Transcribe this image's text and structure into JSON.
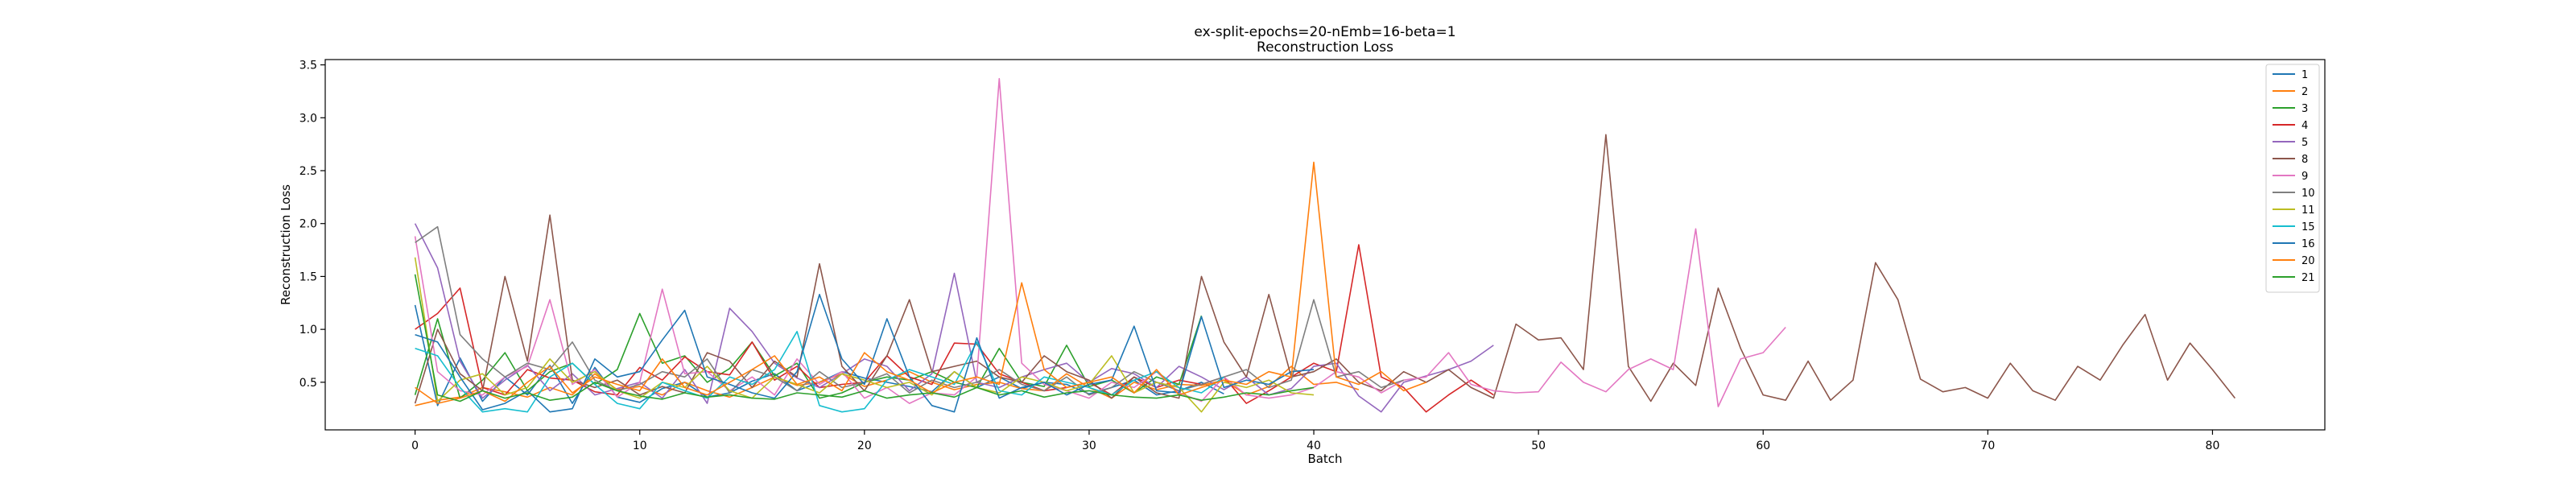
{
  "title": "ex-split-epochs=20-nEmb=16-beta=1",
  "subtitle": "Reconstruction Loss",
  "chart_data": {
    "type": "line",
    "title": "ex-split-epochs=20-nEmb=16-beta=1",
    "subtitle": "Reconstruction Loss",
    "xlabel": "Batch",
    "ylabel": "Reconstruction Loss",
    "xlim": [
      -4,
      85
    ],
    "ylim": [
      0.05,
      3.55
    ],
    "x_ticks": [
      0,
      10,
      20,
      30,
      40,
      50,
      60,
      70,
      80
    ],
    "y_ticks": [
      0.5,
      1.0,
      1.5,
      2.0,
      2.5,
      3.0,
      3.5
    ],
    "x_tick_labels": [
      "0",
      "10",
      "20",
      "30",
      "40",
      "50",
      "60",
      "70",
      "80"
    ],
    "y_tick_labels": [
      "0.5",
      "1.0",
      "1.5",
      "2.0",
      "2.5",
      "3.0",
      "3.5"
    ],
    "grid": false,
    "legend_position": "top-right",
    "series": [
      {
        "name": "1",
        "color": "#1f77b4",
        "values": [
          1.23,
          0.28,
          0.73,
          0.32,
          0.55,
          0.38,
          0.66,
          0.3,
          0.64,
          0.36,
          0.31,
          0.44,
          0.5,
          0.36,
          0.4,
          0.51,
          0.58,
          0.42,
          0.5,
          0.6,
          0.54,
          0.5,
          0.46,
          0.41,
          0.6,
          0.45,
          0.55,
          0.44,
          0.5,
          0.48,
          0.39,
          0.45,
          0.52,
          0.38,
          0.42,
          0.5,
          0.39
        ]
      },
      {
        "name": "2",
        "color": "#ff7f0e",
        "values": [
          0.28,
          0.33,
          0.36,
          0.45,
          0.41,
          0.36,
          0.45,
          0.38,
          0.58,
          0.43,
          0.46,
          0.38,
          0.5,
          0.42,
          0.36,
          0.45,
          0.55,
          0.47,
          0.5,
          0.58,
          0.46,
          0.52,
          0.6,
          0.5,
          0.43,
          0.48,
          0.5,
          0.44,
          0.42,
          0.58,
          0.45,
          0.35,
          0.5,
          0.43,
          0.48,
          0.47,
          0.52,
          0.38,
          0.46,
          0.65,
          0.48,
          0.5,
          0.43
        ]
      },
      {
        "name": "3",
        "color": "#2ca02c",
        "values": [
          0.38,
          1.1,
          0.35,
          0.52,
          0.78,
          0.42,
          0.6,
          0.68,
          0.48,
          0.62,
          1.15,
          0.68,
          0.75,
          0.5,
          0.63,
          0.88,
          0.56,
          0.68,
          0.35,
          0.4,
          0.5,
          0.55,
          0.52,
          0.6,
          0.5,
          0.45,
          0.82,
          0.5,
          0.46,
          0.85,
          0.46,
          0.52,
          0.4,
          0.55,
          0.48,
          1.13
        ]
      },
      {
        "name": "4",
        "color": "#d62728",
        "values": [
          1.0,
          1.15,
          1.39,
          0.45,
          0.38,
          0.62,
          0.54,
          0.52,
          0.41,
          0.38,
          0.64,
          0.52,
          0.74,
          0.6,
          0.57,
          0.88,
          0.52,
          0.65,
          0.45,
          0.48,
          0.5,
          0.75,
          0.55,
          0.48,
          0.87,
          0.86,
          0.58,
          0.5,
          0.42,
          0.45,
          0.5,
          0.38,
          0.55,
          0.45,
          0.52,
          0.48,
          0.55,
          0.3,
          0.42,
          0.55,
          0.68,
          0.6,
          1.8,
          0.55,
          0.45,
          0.22,
          0.38,
          0.52,
          0.38
        ]
      },
      {
        "name": "5",
        "color": "#9467bd",
        "values": [
          2.0,
          1.58,
          0.7,
          0.35,
          0.52,
          0.66,
          0.42,
          0.58,
          0.38,
          0.44,
          0.5,
          0.35,
          0.62,
          0.3,
          1.2,
          0.98,
          0.68,
          0.54,
          0.45,
          0.58,
          0.72,
          0.65,
          0.42,
          0.58,
          1.53,
          0.5,
          0.45,
          0.55,
          0.62,
          0.68,
          0.5,
          0.63,
          0.58,
          0.45,
          0.65,
          0.55,
          0.43,
          0.55,
          0.38,
          0.44,
          0.65,
          0.68,
          0.37,
          0.22,
          0.5,
          0.56,
          0.62,
          0.7,
          0.85
        ]
      },
      {
        "name": "8",
        "color": "#8c564b",
        "values": [
          0.3,
          1.0,
          0.58,
          0.42,
          1.5,
          0.7,
          2.08,
          0.52,
          0.45,
          0.52,
          0.38,
          0.46,
          0.4,
          0.78,
          0.7,
          0.45,
          0.7,
          0.55,
          1.62,
          0.65,
          0.42,
          0.75,
          1.28,
          0.6,
          0.65,
          0.7,
          0.55,
          0.5,
          0.75,
          0.6,
          0.52,
          0.35,
          0.55,
          0.4,
          0.35,
          1.5,
          0.88,
          0.55,
          1.33,
          0.55,
          0.6,
          0.72,
          0.5,
          0.42,
          0.6,
          0.5,
          0.62,
          0.45,
          0.35,
          1.05,
          0.9,
          0.92,
          0.62,
          2.84,
          0.65,
          0.32,
          0.68,
          0.47,
          1.39,
          0.82,
          0.38,
          0.33,
          0.7,
          0.33,
          0.52,
          1.63,
          1.28,
          0.53,
          0.41,
          0.45,
          0.35,
          0.68,
          0.42,
          0.33,
          0.65,
          0.52,
          0.85,
          1.14,
          0.52,
          0.87,
          0.62,
          0.35
        ]
      },
      {
        "name": "9",
        "color": "#e377c2",
        "values": [
          1.88,
          0.6,
          0.42,
          0.38,
          0.55,
          0.65,
          1.28,
          0.48,
          0.62,
          0.36,
          0.5,
          1.38,
          0.58,
          0.6,
          0.42,
          0.55,
          0.38,
          0.72,
          0.48,
          0.6,
          0.35,
          0.45,
          0.3,
          0.4,
          0.38,
          0.55,
          3.37,
          0.68,
          0.48,
          0.42,
          0.35,
          0.5,
          0.45,
          0.6,
          0.4,
          0.32,
          0.55,
          0.38,
          0.35,
          0.38,
          0.45,
          0.6,
          0.55,
          0.4,
          0.52,
          0.55,
          0.78,
          0.48,
          0.42,
          0.4,
          0.41,
          0.69,
          0.5,
          0.41,
          0.62,
          0.72,
          0.62,
          1.95,
          0.27,
          0.72,
          0.78,
          1.02
        ]
      },
      {
        "name": "10",
        "color": "#7f7f7f",
        "values": [
          1.82,
          1.97,
          0.95,
          0.72,
          0.55,
          0.68,
          0.62,
          0.88,
          0.52,
          0.42,
          0.48,
          0.6,
          0.55,
          0.72,
          0.4,
          0.62,
          0.55,
          0.42,
          0.6,
          0.45,
          0.5,
          0.58,
          0.4,
          0.52,
          0.45,
          0.5,
          0.62,
          0.48,
          0.42,
          0.55,
          0.38,
          0.45,
          0.6,
          0.5,
          0.42,
          0.48,
          0.55,
          0.62,
          0.45,
          0.52,
          1.28,
          0.55,
          0.6,
          0.45,
          0.52
        ]
      },
      {
        "name": "11",
        "color": "#bcbd22",
        "values": [
          1.68,
          0.32,
          0.52,
          0.58,
          0.38,
          0.45,
          0.72,
          0.5,
          0.6,
          0.42,
          0.35,
          0.5,
          0.45,
          0.65,
          0.42,
          0.35,
          0.55,
          0.48,
          0.4,
          0.58,
          0.52,
          0.45,
          0.5,
          0.38,
          0.6,
          0.45,
          0.4,
          0.55,
          0.5,
          0.42,
          0.48,
          0.75,
          0.4,
          0.5,
          0.45,
          0.22,
          0.5,
          0.45,
          0.52,
          0.4,
          0.38
        ]
      },
      {
        "name": "15",
        "color": "#17becf",
        "values": [
          0.82,
          0.75,
          0.45,
          0.22,
          0.25,
          0.22,
          0.55,
          0.68,
          0.48,
          0.3,
          0.25,
          0.5,
          0.42,
          0.35,
          0.55,
          0.48,
          0.62,
          0.98,
          0.28,
          0.22,
          0.25,
          0.52,
          0.62,
          0.55,
          0.48,
          0.88,
          0.42,
          0.38,
          0.55,
          0.5,
          0.45,
          0.38,
          0.52,
          0.6,
          0.45,
          0.4,
          0.55
        ]
      },
      {
        "name": "16",
        "color": "#1f77b4",
        "values": [
          0.95,
          0.88,
          0.55,
          0.24,
          0.3,
          0.42,
          0.22,
          0.25,
          0.72,
          0.55,
          0.6,
          0.9,
          1.18,
          0.55,
          0.48,
          0.4,
          0.35,
          0.6,
          1.33,
          0.72,
          0.48,
          1.1,
          0.55,
          0.28,
          0.22,
          0.92,
          0.35,
          0.45,
          0.5,
          0.38,
          0.48,
          0.52,
          1.03,
          0.42,
          0.4,
          1.12,
          0.45,
          0.52,
          0.48,
          0.6,
          0.62
        ]
      },
      {
        "name": "20",
        "color": "#ff7f0e",
        "values": [
          0.45,
          0.3,
          0.35,
          0.42,
          0.32,
          0.5,
          0.65,
          0.4,
          0.55,
          0.48,
          0.42,
          0.72,
          0.45,
          0.38,
          0.5,
          0.62,
          0.75,
          0.48,
          0.55,
          0.42,
          0.78,
          0.6,
          0.52,
          0.4,
          0.5,
          0.55,
          0.48,
          1.44,
          0.62,
          0.45,
          0.5,
          0.55,
          0.4,
          0.62,
          0.38,
          0.45,
          0.52,
          0.48,
          0.6,
          0.55,
          2.58,
          0.55,
          0.48,
          0.6,
          0.42,
          0.5
        ]
      },
      {
        "name": "21",
        "color": "#2ca02c",
        "values": [
          1.52,
          0.38,
          0.32,
          0.42,
          0.35,
          0.4,
          0.33,
          0.36,
          0.5,
          0.42,
          0.37,
          0.34,
          0.4,
          0.36,
          0.38,
          0.35,
          0.34,
          0.4,
          0.38,
          0.36,
          0.42,
          0.35,
          0.38,
          0.4,
          0.36,
          0.45,
          0.38,
          0.42,
          0.36,
          0.4,
          0.42,
          0.38,
          0.36,
          0.35,
          0.38,
          0.33,
          0.36,
          0.4,
          0.38,
          0.42,
          0.45
        ]
      }
    ]
  }
}
